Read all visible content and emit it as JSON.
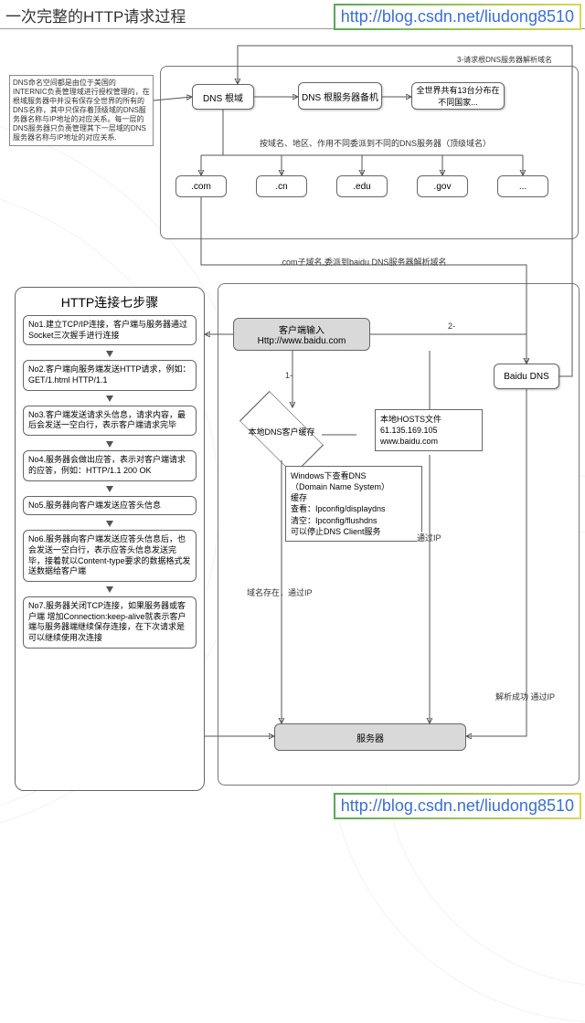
{
  "title": "一次完整的HTTP请求过程",
  "watermark": "http://blog.csdn.net/liudong8510",
  "internic_note": "DNS命名空间都是由位于美国的INTERNIC负责管理域进行授权管理的，在根域服务器中并没有保存全世界的所有的DNS名称，其中只保存着顶级域的DNS服务器名称与IP地址的对应关系。每一层的DNS服务器只负责管理其下一层域的DNS服务器名称与IP地址的对应关系.",
  "dns_root": "DNS 根域",
  "dns_root_backup": "DNS 根服务器备机",
  "root_dist_note": "全世界共有13台分布在不同国家...",
  "delegate_note": "按域名、地区、作用不同委派到不同的DNS服务器（顶级域名）",
  "tlds": [
    ".com",
    ".cn",
    ".edu",
    ".gov",
    "..."
  ],
  "com_sub_note": ".com子域名,委派到baidu DNS服务器解析域名",
  "req_root_note": "3-请求根DNS服务器解析域名",
  "client_input": "客户端输入\nHttp://www.baidu.com",
  "baidu_dns": "Baidu DNS",
  "local_dns_cache": "本地DNS客户缓存",
  "hosts_box": "本地HOSTS文件\n61.135.169.105\nwww.baidu.com",
  "dns_tips": "Windows下查看DNS\n（Domain Name System）\n缓存\n查看：Ipconfig/displaydns\n清空：Ipconfig/flushdns\n可以停止DNS Client服务",
  "via_ip": "通过IP",
  "cache_exist": "域名存在，通过IP",
  "resolve_ok": "解析成功 通过IP",
  "server": "服务器",
  "edge_1": "1-",
  "edge_2": "2-",
  "steps_title": "HTTP连接七步骤",
  "steps": [
    "No1.建立TCP/IP连接，客户端与服务器通过Socket三次握手进行连接",
    "No2.客户端向服务端发送HTTP请求，例如：GET/1.html HTTP/1.1",
    "No3.客户端发送请求头信息，请求内容，最后会发送一空白行，表示客户端请求完毕",
    "No4.服务器会做出应答，表示对客户端请求的应答，例如：HTTP/1.1 200 OK",
    "No5.服务器向客户端发送应答头信息",
    "No6.服务器向客户端发送应答头信息后，也会发送一空白行，表示应答头信息发送完毕，接着就以Content-type要求的数据格式发送数据给客户端",
    "No7.服务器关闭TCP连接，如果服务器或客户端 增加Connection:keep-alive就表示客户端与服务器端继续保存连接，在下次请求是可以继续使用次连接"
  ],
  "colors": {
    "line": "#555555",
    "node_border": "#666666",
    "grey_fill": "#d9d9d9",
    "link": "#3a6fd8",
    "wm_green": "#58a958",
    "wm_yellow": "#d8d858"
  }
}
